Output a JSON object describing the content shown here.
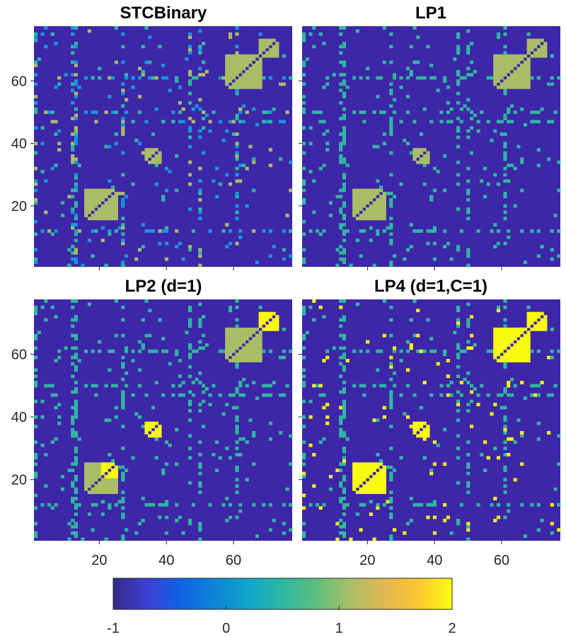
{
  "chart_data": {
    "type": "heatmap",
    "matrix_size": 77,
    "panels": [
      {
        "title": "STCBinary",
        "max_value": 1
      },
      {
        "title": "LP1",
        "max_value": 1
      },
      {
        "title": "LP2 (d=1)",
        "max_value": 2
      },
      {
        "title": "LP4 (d=1,C=1)",
        "max_value": 2
      }
    ],
    "x_ticks": [
      "20",
      "40",
      "60"
    ],
    "y_ticks": [
      "20",
      "40",
      "60"
    ],
    "x_tick_values": [
      20,
      40,
      60
    ],
    "y_tick_values": [
      20,
      40,
      60
    ],
    "axis_range": [
      1,
      77
    ],
    "colorbar": {
      "ticks": [
        "-1",
        "0",
        "1",
        "2"
      ],
      "tick_values": [
        -1,
        0,
        1,
        2
      ],
      "range": [
        -1,
        2
      ],
      "colormap": "parula"
    },
    "colors": {
      "background": "#3e26a8",
      "blue": "#1496e0",
      "teal": "#2eb7a0",
      "olive": "#a9bd67",
      "yellow": "#f9fb0e"
    },
    "blocks": [
      {
        "rows": [
          16,
          25
        ],
        "cols": [
          16,
          25
        ],
        "value_stc": 1,
        "value_lp4": 2
      },
      {
        "rows": [
          34,
          38
        ],
        "cols": [
          34,
          38
        ],
        "value_stc": 1,
        "value_lp4": 2
      },
      {
        "rows": [
          58,
          68
        ],
        "cols": [
          58,
          68
        ],
        "value_stc": 1,
        "value_lp4": 2
      },
      {
        "rows": [
          68,
          73
        ],
        "cols": [
          68,
          73
        ],
        "value_stc": 1,
        "value_lp4": 2
      }
    ]
  }
}
